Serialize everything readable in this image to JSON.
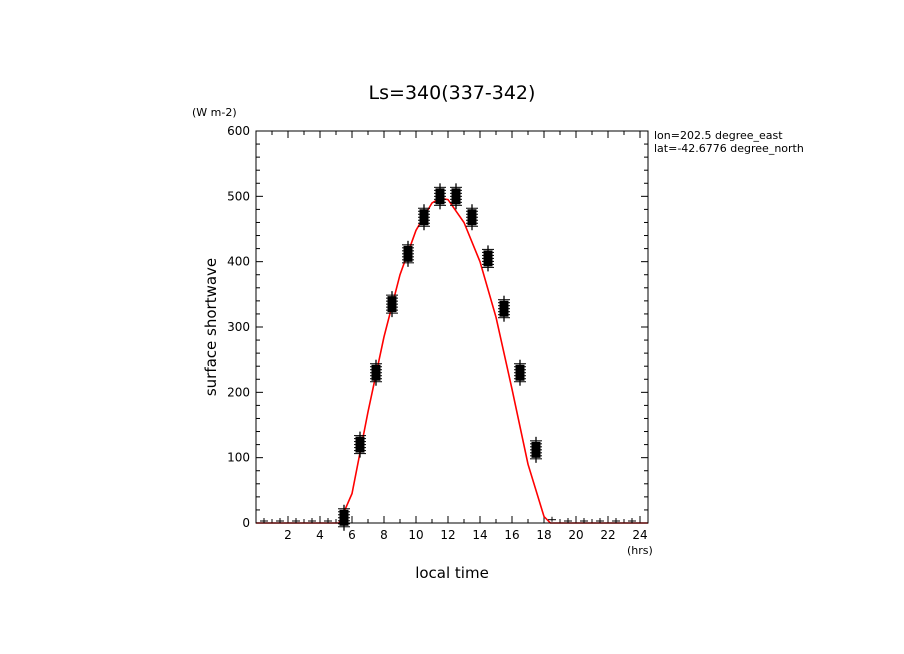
{
  "chart_data": {
    "type": "scatter",
    "title": "Ls=340(337-342)",
    "xlabel": "local time",
    "ylabel": "surface shortwave",
    "x_unit": "(hrs)",
    "y_unit": "(W m-2)",
    "annotation": [
      "lon=202.5 degree_east",
      "lat=-42.6776 degree_north"
    ],
    "xlim": [
      0,
      24.5
    ],
    "ylim": [
      0,
      600
    ],
    "xticks": [
      2,
      4,
      6,
      8,
      10,
      12,
      14,
      16,
      18,
      20,
      22,
      24
    ],
    "yticks": [
      0,
      100,
      200,
      300,
      400,
      500,
      600
    ],
    "grid": false,
    "colors": {
      "points": "#000000",
      "fit": "#ff0000"
    },
    "series": [
      {
        "kind": "points",
        "x": [
          0.5,
          1.5,
          2.5,
          3.5,
          4.5,
          5.5,
          6.5,
          7.5,
          8.5,
          9.5,
          10.5,
          11.5,
          12.5,
          13.5,
          14.5,
          15.5,
          16.5,
          17.5,
          18.5,
          19.5,
          20.5,
          21.5,
          22.5,
          23.5
        ],
        "y": [
          0,
          0,
          0,
          0,
          0,
          8,
          120,
          230,
          335,
          412,
          468,
          500,
          500,
          468,
          405,
          328,
          230,
          112,
          2,
          0,
          0,
          0,
          0,
          0
        ]
      },
      {
        "kind": "fit-line",
        "x": [
          0,
          1,
          2,
          3,
          4,
          5,
          5.2,
          6,
          7,
          8,
          9,
          10,
          11,
          11.5,
          12,
          13,
          14,
          15,
          16,
          17,
          18,
          18.4,
          19,
          20,
          21,
          22,
          23,
          24,
          24.5
        ],
        "y": [
          0,
          0,
          0,
          0,
          0,
          0,
          0,
          45,
          170,
          285,
          380,
          448,
          490,
          497,
          495,
          460,
          400,
          315,
          205,
          90,
          10,
          0,
          0,
          0,
          0,
          0,
          0,
          0,
          0
        ]
      }
    ]
  }
}
